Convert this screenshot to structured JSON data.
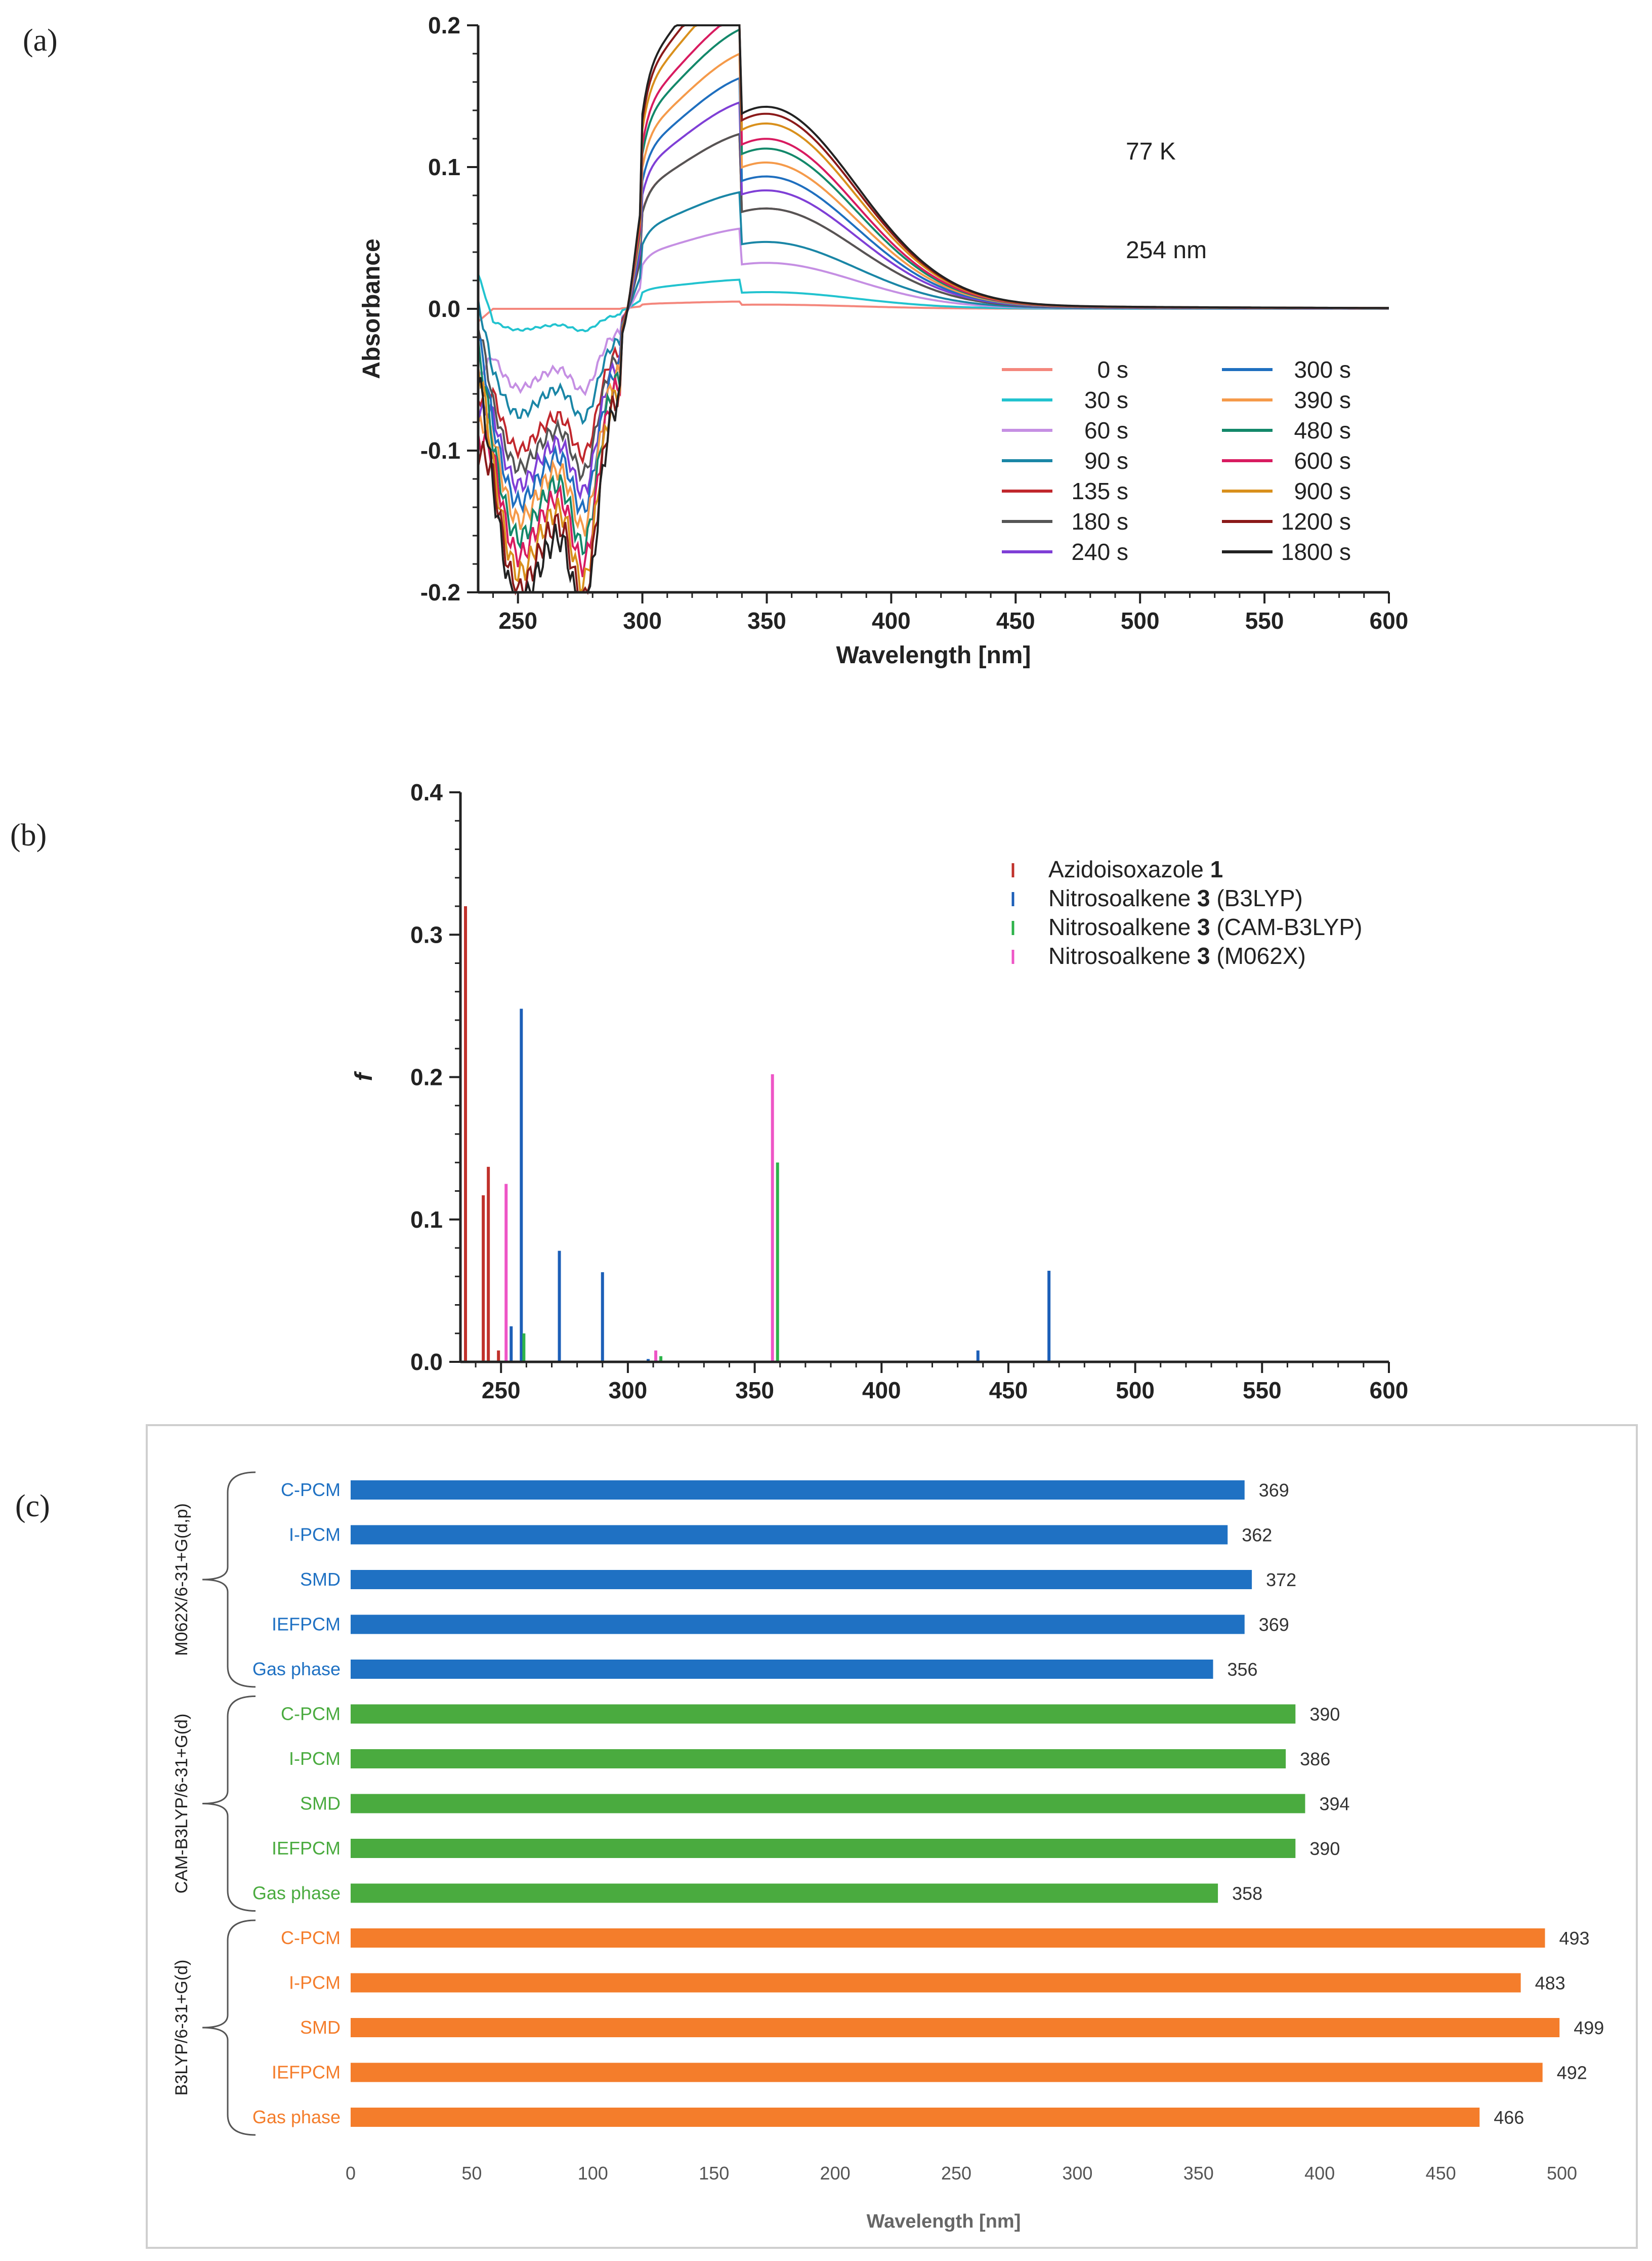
{
  "panels": {
    "a": "(a)",
    "b": "(b)",
    "c": "(c)"
  },
  "chart_data": [
    {
      "id": "a",
      "type": "line",
      "xlabel": "Wavelength [nm]",
      "ylabel": "Absorbance",
      "xlim": [
        234,
        600
      ],
      "ylim": [
        -0.2,
        0.2
      ],
      "xticks": [
        250,
        300,
        350,
        400,
        450,
        500,
        550,
        600
      ],
      "yticks": [
        -0.2,
        -0.1,
        0.0,
        0.1,
        0.2
      ],
      "annotations": [
        "77 K",
        "254 nm"
      ],
      "legend": "bottom-right, two columns",
      "series": [
        {
          "name": "0 s",
          "color": "#f4877d",
          "peak": 0.003,
          "dip": 0.0
        },
        {
          "name": "30 s",
          "color": "#22c3cf",
          "peak": 0.012,
          "dip": -0.012
        },
        {
          "name": "60 s",
          "color": "#c58fe3",
          "peak": 0.033,
          "dip": -0.045
        },
        {
          "name": "90 s",
          "color": "#1a86a6",
          "peak": 0.048,
          "dip": -0.06
        },
        {
          "name": "135 s",
          "color": "#c1272d",
          "peak": 0.072,
          "dip": -0.08
        },
        {
          "name": "180 s",
          "color": "#555555",
          "peak": 0.072,
          "dip": -0.09
        },
        {
          "name": "240 s",
          "color": "#7f3fd6",
          "peak": 0.085,
          "dip": -0.1
        },
        {
          "name": "300 s",
          "color": "#1f6fbf",
          "peak": 0.095,
          "dip": -0.11
        },
        {
          "name": "390 s",
          "color": "#f59a4a",
          "peak": 0.105,
          "dip": -0.12
        },
        {
          "name": "480 s",
          "color": "#13886a",
          "peak": 0.115,
          "dip": -0.13
        },
        {
          "name": "600 s",
          "color": "#d81b60",
          "peak": 0.122,
          "dip": -0.14
        },
        {
          "name": "900 s",
          "color": "#d9901c",
          "peak": 0.133,
          "dip": -0.15
        },
        {
          "name": "1200 s",
          "color": "#8b1a1a",
          "peak": 0.14,
          "dip": -0.16
        },
        {
          "name": "1800 s",
          "color": "#222222",
          "peak": 0.145,
          "dip": -0.17
        }
      ]
    },
    {
      "id": "b",
      "type": "bar",
      "xlabel": "",
      "ylabel": "f",
      "xlim": [
        234,
        600
      ],
      "ylim": [
        0,
        0.4
      ],
      "xticks": [
        250,
        300,
        350,
        400,
        450,
        500,
        550,
        600
      ],
      "yticks": [
        0.0,
        0.1,
        0.2,
        0.3,
        0.4
      ],
      "legend": "top-right",
      "series": [
        {
          "name_prefix": "Azidoisoxazole ",
          "name_bold": "1",
          "name_suffix": "",
          "color": "#c0312b",
          "x": [
            236,
            243,
            245,
            249
          ],
          "values": [
            0.32,
            0.117,
            0.137,
            0.008
          ]
        },
        {
          "name_prefix": "Nitrosoalkene ",
          "name_bold": "3",
          "name_suffix": " (B3LYP)",
          "color": "#1c5fb8",
          "x": [
            254,
            258,
            273,
            290,
            308,
            438,
            466
          ],
          "values": [
            0.025,
            0.248,
            0.078,
            0.063,
            0.002,
            0.008,
            0.064
          ]
        },
        {
          "name_prefix": "Nitrosoalkene ",
          "name_bold": "3",
          "name_suffix": " (CAM-B3LYP)",
          "color": "#2db34a",
          "x": [
            259,
            313,
            359
          ],
          "values": [
            0.02,
            0.004,
            0.14
          ]
        },
        {
          "name_prefix": "Nitrosoalkene ",
          "name_bold": "3",
          "name_suffix": " (M062X)",
          "color": "#ee55c6",
          "x": [
            252,
            311,
            357
          ],
          "values": [
            0.125,
            0.008,
            0.202
          ]
        }
      ]
    },
    {
      "id": "c",
      "type": "bar",
      "orientation": "horizontal",
      "xlabel": "Wavelength [nm]",
      "ylabel": "",
      "xlim": [
        0,
        500
      ],
      "xticks": [
        0,
        50,
        100,
        150,
        200,
        250,
        300,
        350,
        400,
        450,
        500
      ],
      "grid": false,
      "groups": [
        {
          "name": "M062X/6-31+G(d,p)",
          "color": "#1f71c3",
          "categories": [
            "C-PCM",
            "I-PCM",
            "SMD",
            "IEFPCM",
            "Gas phase"
          ],
          "values": [
            369,
            362,
            372,
            369,
            356
          ]
        },
        {
          "name": "CAM-B3LYP/6-31+G(d)",
          "color": "#4aab3f",
          "categories": [
            "C-PCM",
            "I-PCM",
            "SMD",
            "IEFPCM",
            "Gas phase"
          ],
          "values": [
            390,
            386,
            394,
            390,
            358
          ]
        },
        {
          "name": "B3LYP/6-31+G(d)",
          "color": "#f47d2b",
          "categories": [
            "C-PCM",
            "I-PCM",
            "SMD",
            "IEFPCM",
            "Gas phase"
          ],
          "values": [
            493,
            483,
            499,
            492,
            466
          ]
        }
      ]
    }
  ]
}
